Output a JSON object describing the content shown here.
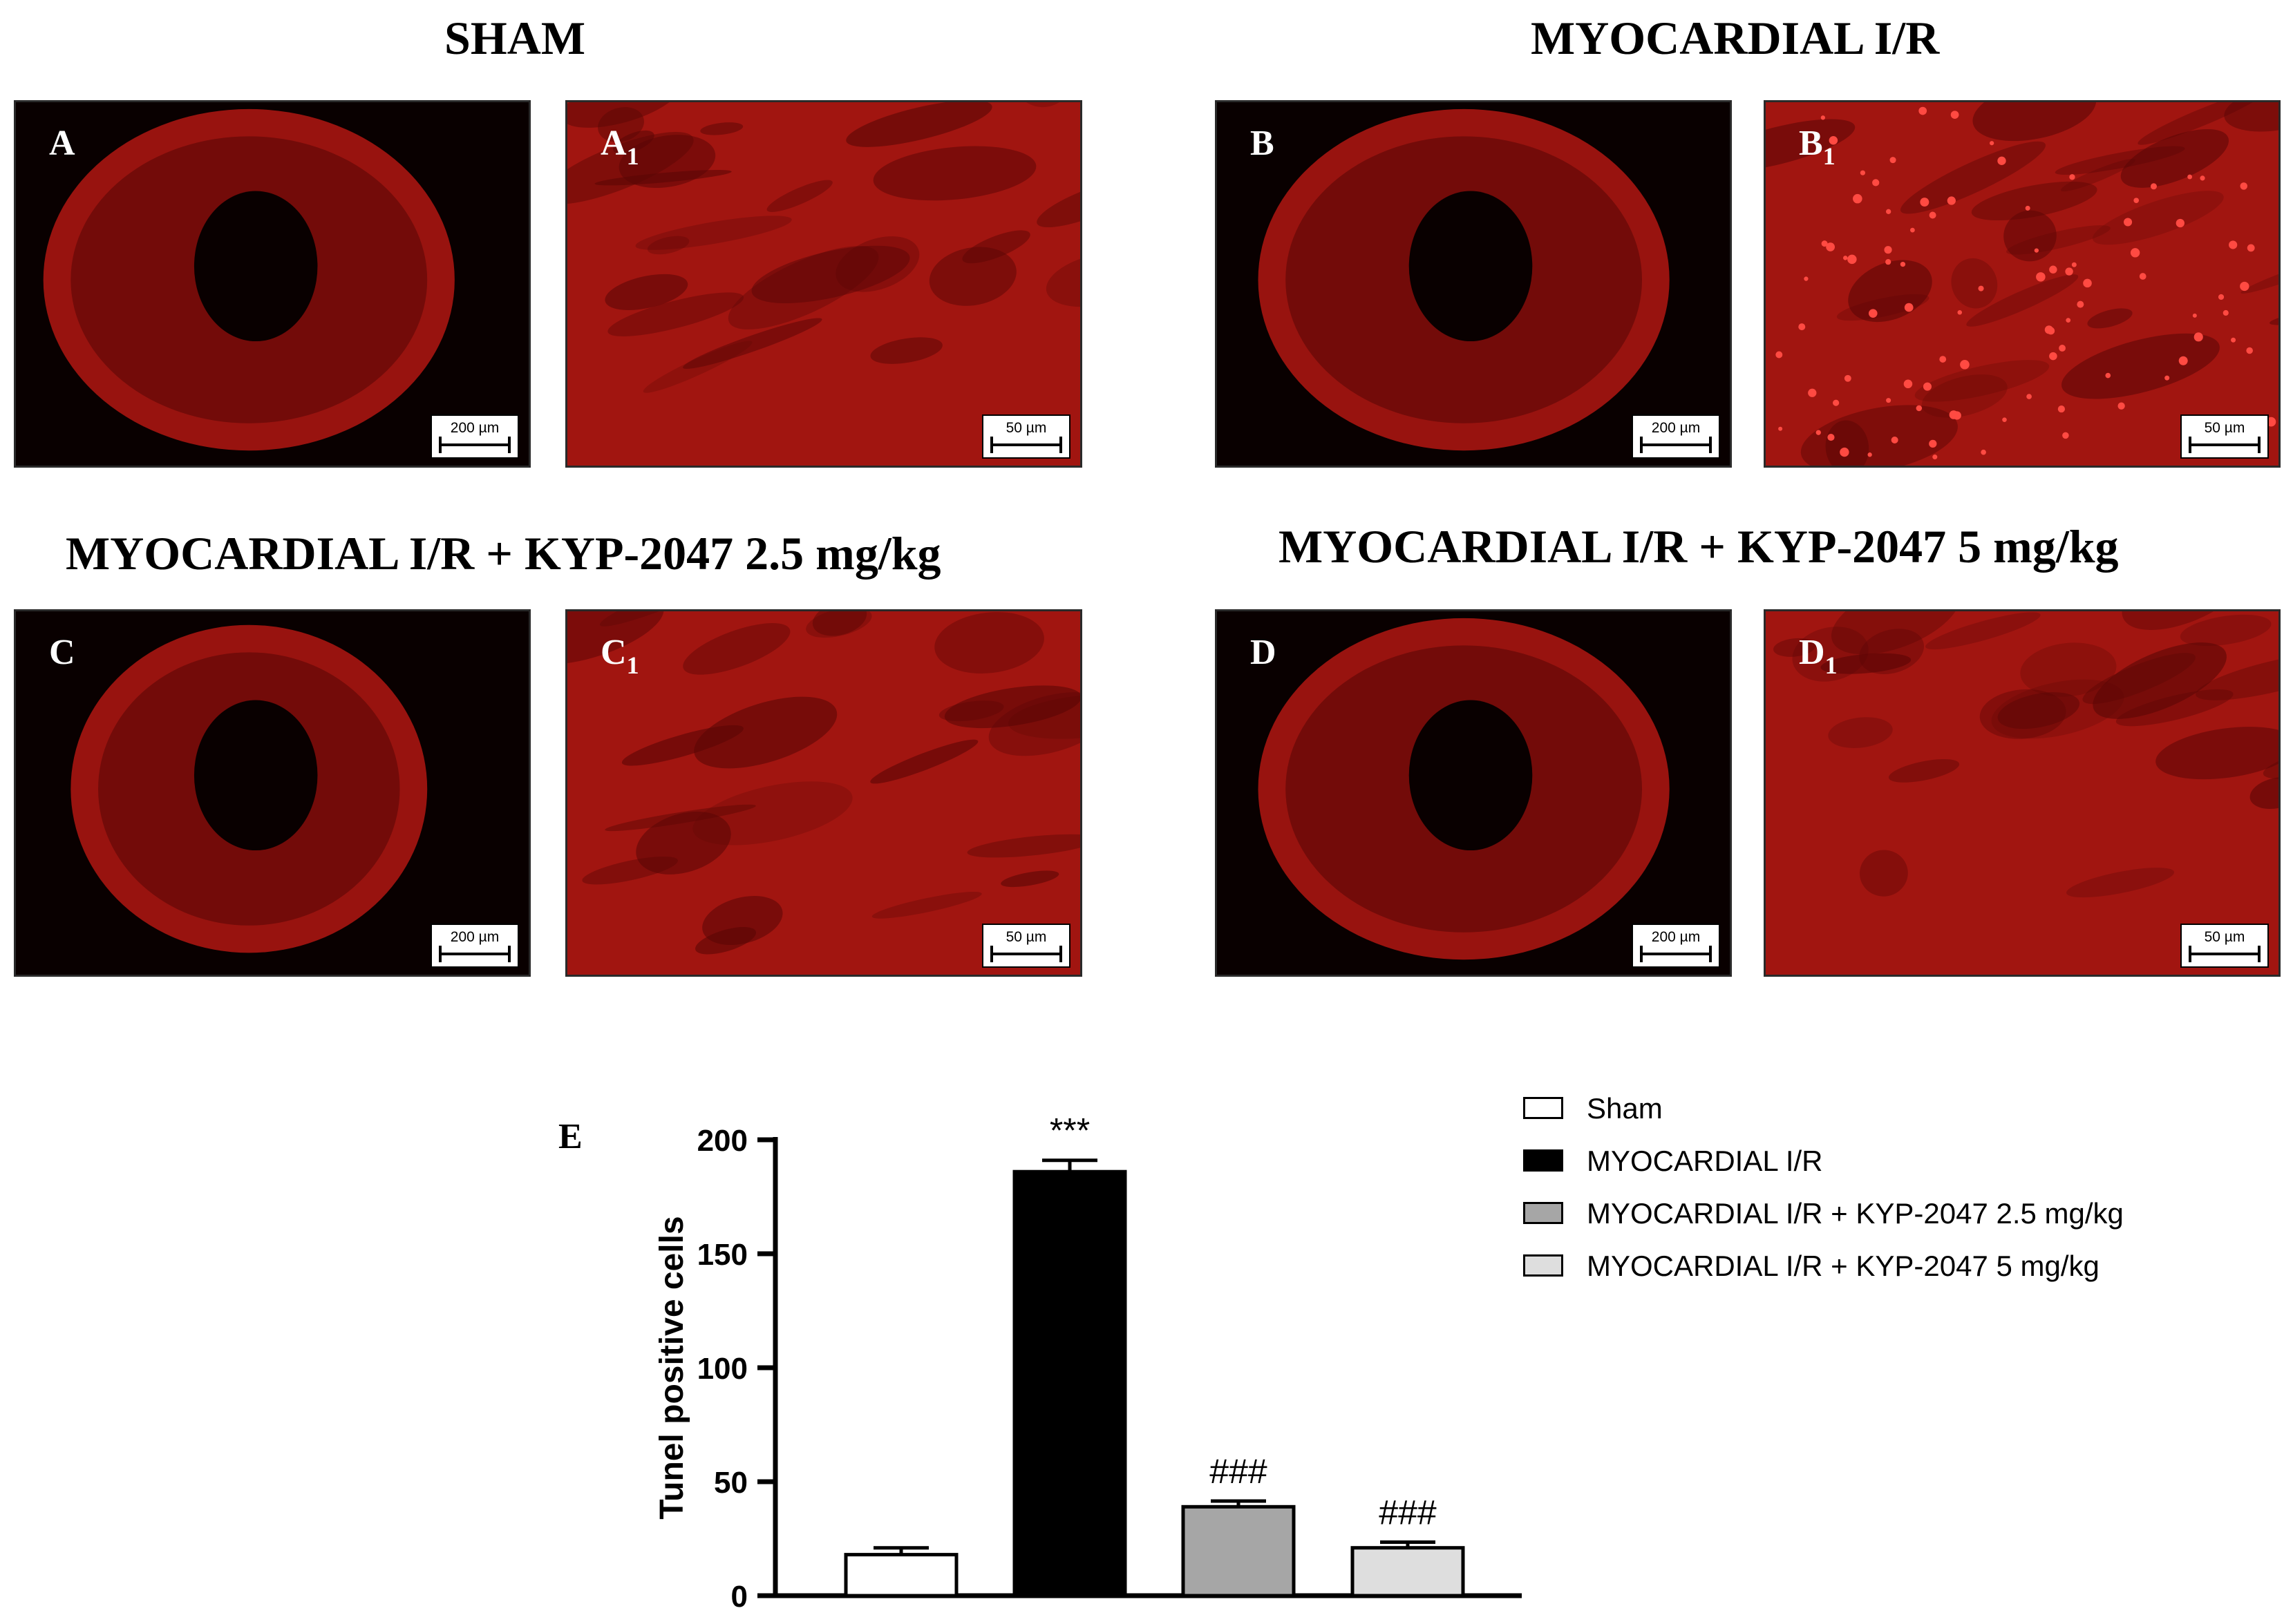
{
  "titles": {
    "sham": "SHAM",
    "ir": "MYOCARDIAL I/R",
    "kyp25": "MYOCARDIAL I/R + KYP-2047 2.5 mg/kg",
    "kyp5": "MYOCARDIAL I/R + KYP-2047 5 mg/kg"
  },
  "panels": [
    {
      "letter": "A",
      "sub": "",
      "scale": "200 µm",
      "kind": "heart"
    },
    {
      "letter": "A",
      "sub": "1",
      "scale": "50 µm",
      "kind": "zoom"
    },
    {
      "letter": "B",
      "sub": "",
      "scale": "200 µm",
      "kind": "heart"
    },
    {
      "letter": "B",
      "sub": "1",
      "scale": "50 µm",
      "kind": "zoom"
    },
    {
      "letter": "C",
      "sub": "",
      "scale": "200 µm",
      "kind": "heart"
    },
    {
      "letter": "C",
      "sub": "1",
      "scale": "50 µm",
      "kind": "zoom"
    },
    {
      "letter": "D",
      "sub": "",
      "scale": "200 µm",
      "kind": "heart"
    },
    {
      "letter": "D",
      "sub": "1",
      "scale": "50 µm",
      "kind": "zoom"
    }
  ],
  "colors": {
    "tissue": "#c81a14",
    "tissue_dark": "#5a0605",
    "background": "#090000"
  },
  "chart_data": {
    "type": "bar",
    "panel_label": "E",
    "ylabel": "Tunel positive cells",
    "ylim": [
      0,
      200
    ],
    "yticks": [
      0,
      50,
      100,
      150,
      200
    ],
    "categories": [
      "Sham",
      "MYOCARDIAL I/R",
      "MYOCARDIAL I/R + KYP-2047 2.5 mg/kg",
      "MYOCARDIAL I/R + KYP-2047 5 mg/kg"
    ],
    "values": [
      18,
      186,
      39,
      21
    ],
    "errors": [
      3,
      5,
      2.5,
      2.5
    ],
    "colors": [
      "#ffffff",
      "#000000",
      "#a6a6a6",
      "#dedede"
    ],
    "annotations": [
      "",
      "***",
      "###",
      "###"
    ],
    "legend_position": "top-right"
  }
}
